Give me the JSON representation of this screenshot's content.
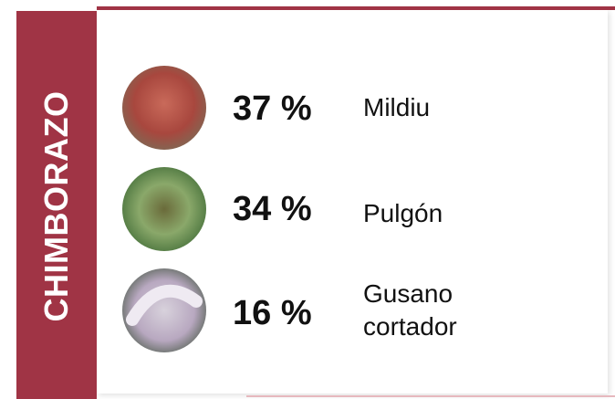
{
  "title": "CHIMBORAZO",
  "items": [
    {
      "percent": "37 %",
      "name": "Mildiu"
    },
    {
      "percent": "34 %",
      "name": "Pulgón"
    },
    {
      "percent": "16 %",
      "name": "Gusano cortador"
    }
  ]
}
